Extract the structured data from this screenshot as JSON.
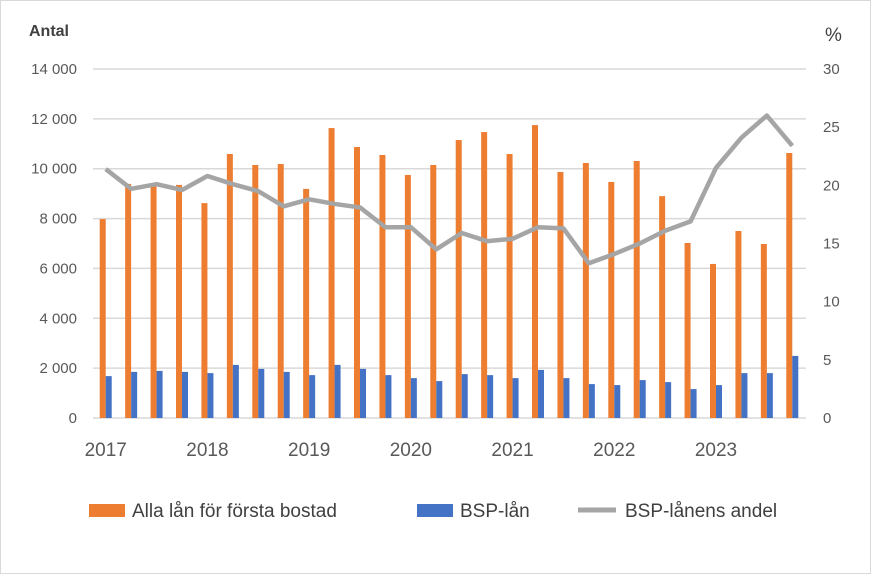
{
  "chart_data": {
    "type": "bar+line",
    "left_axis_title": "Antal",
    "right_axis_title": "%",
    "ylim_left": [
      0,
      14000
    ],
    "ylim_right": [
      0,
      30
    ],
    "left_ticks": [
      "0",
      "2 000",
      "4 000",
      "6 000",
      "8 000",
      "10 000",
      "12 000",
      "14 000"
    ],
    "right_ticks": [
      "0",
      "5",
      "10",
      "15",
      "20",
      "25",
      "30"
    ],
    "year_labels": [
      "2017",
      "2018",
      "2019",
      "2020",
      "2021",
      "2022",
      "2023"
    ],
    "grid": true,
    "legend_placement": "bottom",
    "series": [
      {
        "name": "Alla lån för första bostad",
        "type": "bar",
        "axis": "left",
        "color": "#ED7D31",
        "values": [
          7980,
          9390,
          9350,
          9350,
          8620,
          10590,
          10150,
          10190,
          9190,
          11630,
          10870,
          10550,
          9750,
          10150,
          11150,
          11470,
          10590,
          11750,
          9870,
          10230,
          9470,
          10310,
          8900,
          7020,
          6180,
          7500,
          6980,
          10630
        ]
      },
      {
        "name": "BSP-lån",
        "type": "bar",
        "axis": "left",
        "color": "#4472C4",
        "values": [
          1680,
          1850,
          1890,
          1850,
          1800,
          2130,
          1970,
          1850,
          1720,
          2130,
          1970,
          1720,
          1600,
          1480,
          1760,
          1720,
          1600,
          1930,
          1600,
          1360,
          1320,
          1520,
          1440,
          1160,
          1320,
          1800,
          1800,
          2490
        ]
      },
      {
        "name": "BSP-lånens andel",
        "type": "line",
        "axis": "right",
        "color": "#A5A5A5",
        "values": [
          21.4,
          19.7,
          20.1,
          19.6,
          20.8,
          20.1,
          19.5,
          18.2,
          18.8,
          18.4,
          18.1,
          16.4,
          16.4,
          14.5,
          15.9,
          15.2,
          15.4,
          16.4,
          16.3,
          13.3,
          14.1,
          15.0,
          16.1,
          16.9,
          21.5,
          24.1,
          26.0,
          23.4
        ]
      }
    ]
  }
}
